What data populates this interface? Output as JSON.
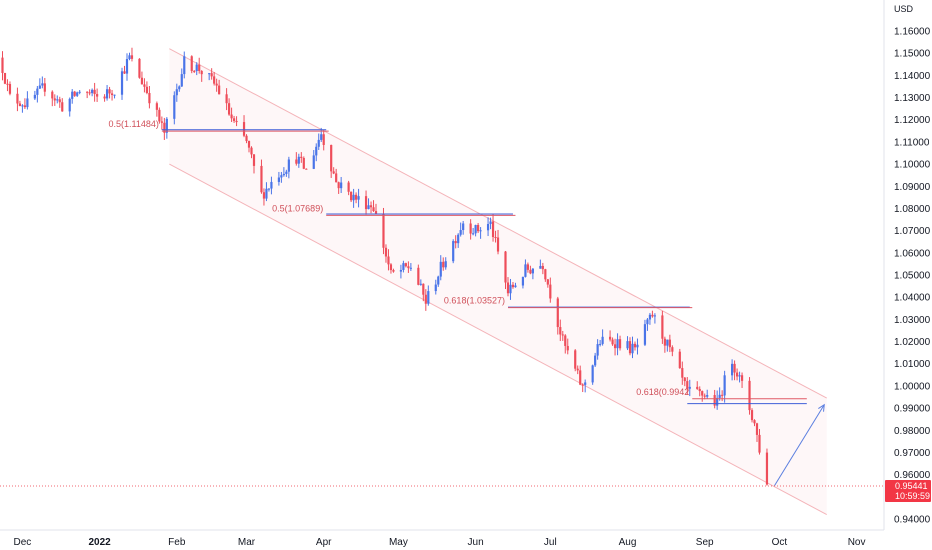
{
  "chart_data": {
    "type": "candlestick",
    "instrument_unit": "USD",
    "y_ticks": [
      0.94,
      0.95,
      0.96,
      0.97,
      0.98,
      0.99,
      1.0,
      1.01,
      1.02,
      1.03,
      1.04,
      1.05,
      1.06,
      1.07,
      1.08,
      1.09,
      1.1,
      1.11,
      1.12,
      1.13,
      1.14,
      1.15,
      1.16
    ],
    "y_tick_labels": [
      "0.94000",
      "0.95000",
      "0.96000",
      "0.97000",
      "0.98000",
      "0.99000",
      "1.00000",
      "1.01000",
      "1.02000",
      "1.03000",
      "1.04000",
      "1.05000",
      "1.06000",
      "1.07000",
      "1.08000",
      "1.09000",
      "1.10000",
      "1.11000",
      "1.12000",
      "1.13000",
      "1.14000",
      "1.15000",
      "1.16000"
    ],
    "ylim": [
      0.935,
      1.168
    ],
    "x_start": "2021-11-22",
    "x_end": "2022-11-12",
    "x_ticks": [
      {
        "date": "2021-12-01",
        "label": "Dec",
        "bold": false
      },
      {
        "date": "2022-01-01",
        "label": "2022",
        "bold": true
      },
      {
        "date": "2022-02-01",
        "label": "Feb",
        "bold": false
      },
      {
        "date": "2022-03-01",
        "label": "Mar",
        "bold": false
      },
      {
        "date": "2022-04-01",
        "label": "Apr",
        "bold": false
      },
      {
        "date": "2022-05-01",
        "label": "May",
        "bold": false
      },
      {
        "date": "2022-06-01",
        "label": "Jun",
        "bold": false
      },
      {
        "date": "2022-07-01",
        "label": "Jul",
        "bold": false
      },
      {
        "date": "2022-08-01",
        "label": "Aug",
        "bold": false
      },
      {
        "date": "2022-09-01",
        "label": "Sep",
        "bold": false
      },
      {
        "date": "2022-10-01",
        "label": "Oct",
        "bold": false
      },
      {
        "date": "2022-11-01",
        "label": "Nov",
        "bold": false
      }
    ],
    "price_path": [
      [
        "2021-11-22",
        1.148
      ],
      [
        "2021-11-26",
        1.13
      ],
      [
        "2021-12-03",
        1.127
      ],
      [
        "2021-12-10",
        1.135
      ],
      [
        "2021-12-17",
        1.126
      ],
      [
        "2021-12-24",
        1.133
      ],
      [
        "2022-01-01",
        1.13
      ],
      [
        "2022-01-07",
        1.134
      ],
      [
        "2022-01-13",
        1.148
      ],
      [
        "2022-01-20",
        1.133
      ],
      [
        "2022-01-27",
        1.114
      ],
      [
        "2022-02-04",
        1.146
      ],
      [
        "2022-02-10",
        1.143
      ],
      [
        "2022-02-17",
        1.135
      ],
      [
        "2022-02-24",
        1.118
      ],
      [
        "2022-03-01",
        1.11
      ],
      [
        "2022-03-07",
        1.086
      ],
      [
        "2022-03-14",
        1.096
      ],
      [
        "2022-03-21",
        1.103
      ],
      [
        "2022-03-25",
        1.097
      ],
      [
        "2022-03-31",
        1.114
      ],
      [
        "2022-04-06",
        1.092
      ],
      [
        "2022-04-13",
        1.085
      ],
      [
        "2022-04-21",
        1.081
      ],
      [
        "2022-04-28",
        1.05
      ],
      [
        "2022-05-06",
        1.054
      ],
      [
        "2022-05-12",
        1.038
      ],
      [
        "2022-05-20",
        1.058
      ],
      [
        "2022-05-27",
        1.074
      ],
      [
        "2022-06-01",
        1.07
      ],
      [
        "2022-06-07",
        1.073
      ],
      [
        "2022-06-14",
        1.042
      ],
      [
        "2022-06-21",
        1.052
      ],
      [
        "2022-06-28",
        1.055
      ],
      [
        "2022-07-06",
        1.02
      ],
      [
        "2022-07-14",
        0.999
      ],
      [
        "2022-07-21",
        1.02
      ],
      [
        "2022-07-28",
        1.02
      ],
      [
        "2022-08-04",
        1.016
      ],
      [
        "2022-08-11",
        1.032
      ],
      [
        "2022-08-18",
        1.016
      ],
      [
        "2022-08-25",
        0.997
      ],
      [
        "2022-09-01",
        0.996
      ],
      [
        "2022-09-06",
        0.992
      ],
      [
        "2022-09-12",
        1.012
      ],
      [
        "2022-09-16",
        1.0
      ],
      [
        "2022-09-21",
        0.983
      ],
      [
        "2022-09-26",
        0.955
      ]
    ],
    "current_price": "0.95441",
    "current_price_value": 0.95441,
    "countdown": "10:59:59",
    "fib_levels": [
      {
        "label": "0.5(1.11484)",
        "value": 1.11484,
        "x_from": "2022-01-26",
        "x_to": "2022-04-03"
      },
      {
        "label": "0.5(1.07689)",
        "value": 1.07689,
        "x_from": "2022-04-02",
        "x_to": "2022-06-17"
      },
      {
        "label": "0.618(1.03527)",
        "value": 1.03527,
        "x_from": "2022-06-14",
        "x_to": "2022-08-27"
      },
      {
        "label": "0.618(0.9942",
        "value": 0.9942,
        "x_from": "2022-08-27",
        "x_to": "2022-10-12"
      }
    ],
    "resistance_lines": [
      {
        "value": 1.1155,
        "x_from": "2022-01-26",
        "x_to": "2022-04-02"
      },
      {
        "value": 1.0775,
        "x_from": "2022-04-02",
        "x_to": "2022-06-16"
      },
      {
        "value": 1.0355,
        "x_from": "2022-06-14",
        "x_to": "2022-08-26"
      },
      {
        "value": 0.992,
        "x_from": "2022-08-25",
        "x_to": "2022-10-12"
      }
    ],
    "channel": {
      "upper": [
        [
          "2022-01-29",
          1.152
        ],
        [
          "2022-10-20",
          0.9945
        ]
      ],
      "lower": [
        [
          "2022-01-29",
          1.1
        ],
        [
          "2022-10-20",
          0.942
        ]
      ]
    },
    "projection_arrow": [
      [
        "2022-09-29",
        0.955
      ],
      [
        "2022-10-19",
        0.9915
      ]
    ]
  }
}
